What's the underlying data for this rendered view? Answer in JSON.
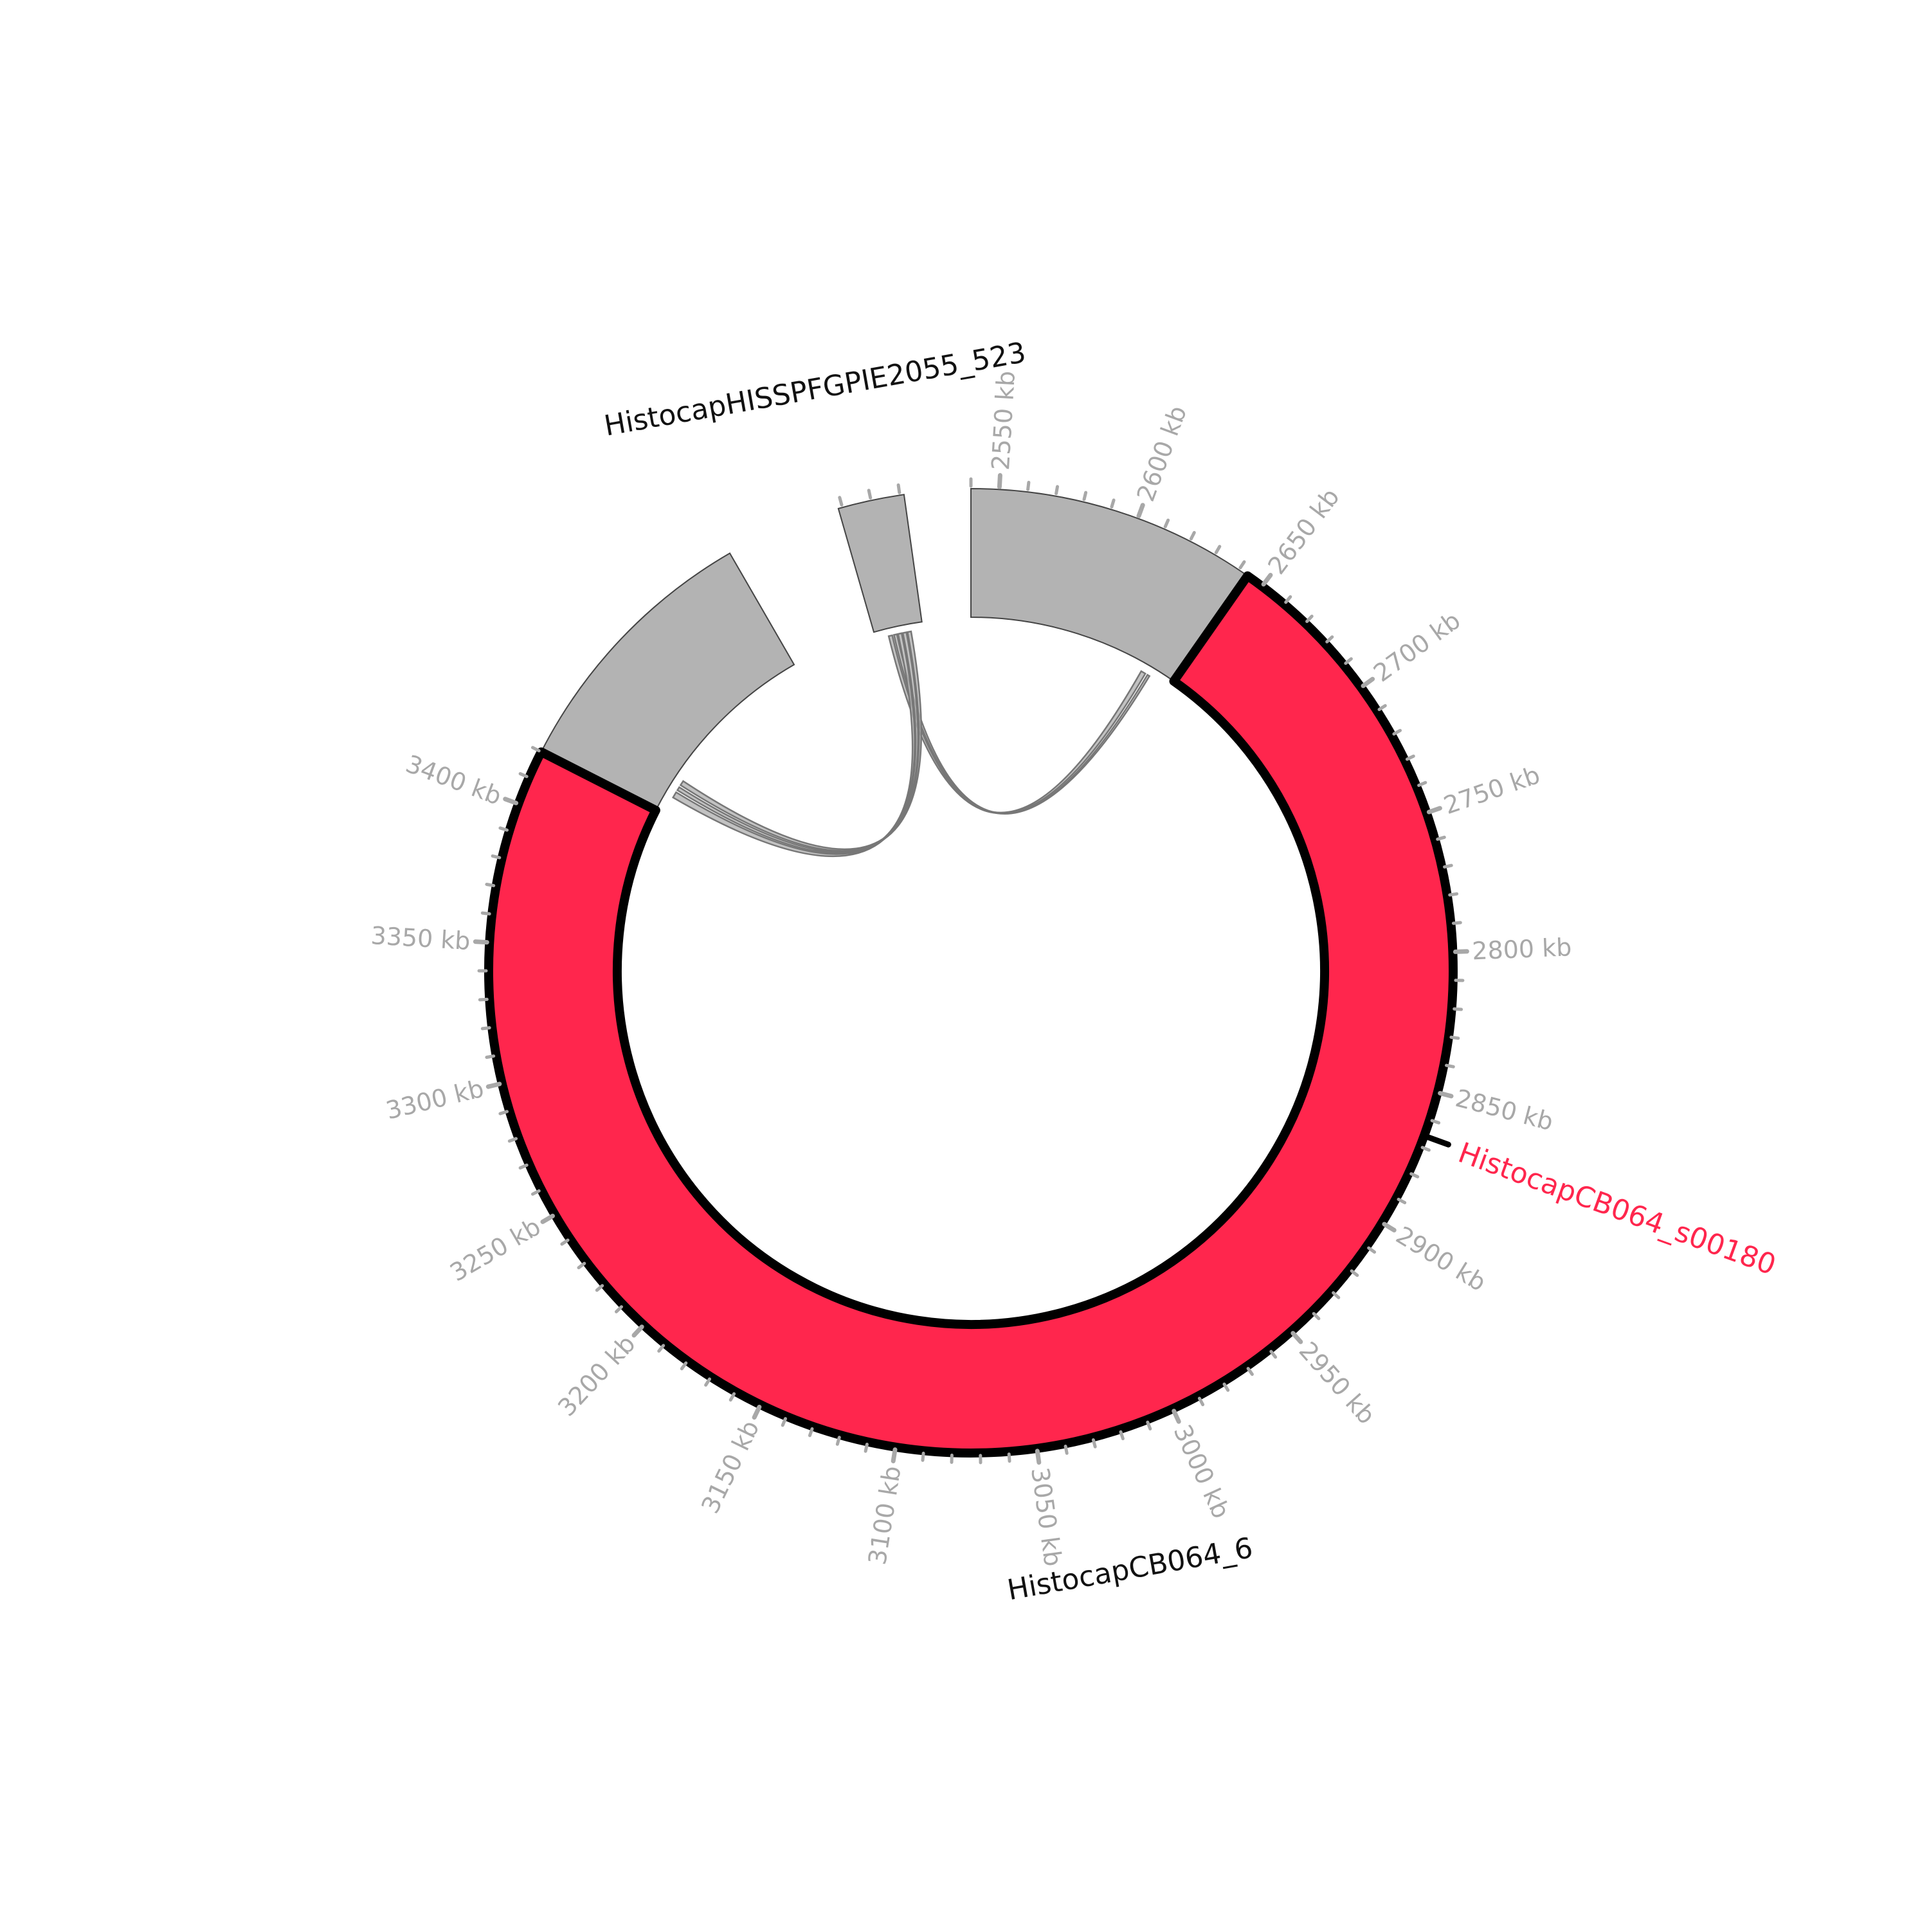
{
  "diagram": {
    "type": "circos",
    "colors": {
      "highlight": "#ff264d",
      "gray_segment": "#b3b3b3",
      "tick": "#a8a8a8",
      "outline": "#000000",
      "link_stroke": "#777777",
      "link_fill": "#b3b3b3"
    },
    "scale_labels": [
      "2550 kb",
      "2600 kb",
      "2650 kb",
      "2700 kb",
      "2750 kb",
      "2800 kb",
      "2850 kb",
      "2900 kb",
      "2950 kb",
      "3000 kb",
      "3050 kb",
      "3100 kb",
      "3150 kb",
      "3200 kb",
      "3250 kb",
      "3300 kb",
      "3350 kb",
      "3400 kb"
    ],
    "contigs": [
      {
        "name": "HistocapHISSPFGPIE2055_523"
      },
      {
        "name": "HistocapCB064_6"
      }
    ],
    "highlight_feature": {
      "name": "HistocapCB064_s00180"
    }
  }
}
